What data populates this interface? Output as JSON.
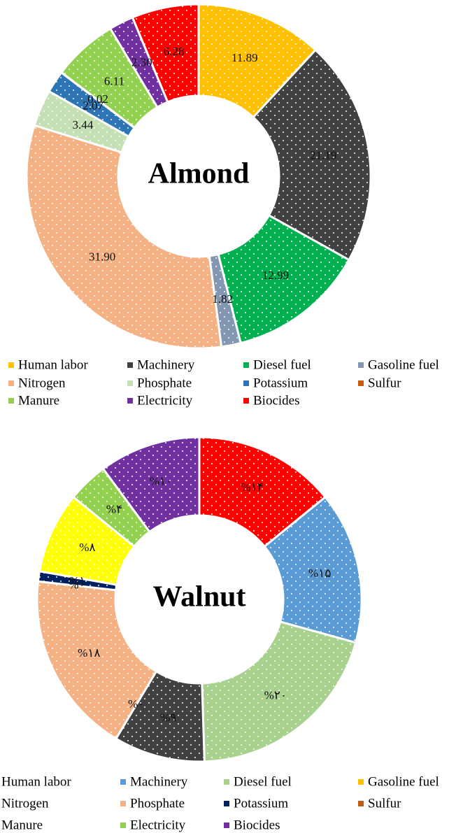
{
  "chart_data": [
    {
      "type": "donut",
      "title": "Almond",
      "categories": [
        "Human labor",
        "Machinery",
        "Diesel fuel",
        "Gasoline fuel",
        "Nitrogen",
        "Phosphate",
        "Potassium",
        "Sulfur",
        "Manure",
        "Electricity",
        "Biocides"
      ],
      "values": [
        11.89,
        21.19,
        12.99,
        1.82,
        31.9,
        3.44,
        2.07,
        0.02,
        6.11,
        2.3,
        6.28
      ],
      "value_labels": [
        "11.89",
        "21.19",
        "12.99",
        "1.82",
        "31.90",
        "3.44",
        "2.07",
        "0.02",
        "6.11",
        "2.30",
        "6.28"
      ],
      "colors": [
        "#FFC000",
        "#404040",
        "#00B050",
        "#8497B0",
        "#F4B183",
        "#C5E0B4",
        "#2E75B6",
        "#C55A11",
        "#92D050",
        "#7030A0",
        "#FF0000"
      ]
    },
    {
      "type": "donut",
      "title": "Walnut",
      "values": [
        14,
        15,
        20,
        9,
        0,
        18,
        0,
        1,
        8,
        4,
        10
      ],
      "value_labels": [
        "%۱۴",
        "%۱۵",
        "%۲۰",
        "%۹",
        "%۰",
        "%۱۸",
        "%۰",
        "%۱",
        "%۸",
        "%۴",
        "%۱۰"
      ],
      "colors": [
        "#FF0000",
        "#5B9BD5",
        "#A9D18E",
        "#404040",
        "#808080",
        "#F4B183",
        "#C55A11",
        "#002060",
        "#FFFF00",
        "#92D050",
        "#7030A0"
      ],
      "legend": [
        {
          "name": "Human labor",
          "color": "#FFFFFF"
        },
        {
          "name": "Machinery",
          "color": "#5B9BD5"
        },
        {
          "name": "Diesel fuel",
          "color": "#A9D18E"
        },
        {
          "name": "Gasoline fuel",
          "color": "#FFC000"
        },
        {
          "name": "Nitrogen",
          "color": "#FFFFFF"
        },
        {
          "name": "Phosphate",
          "color": "#F4B183"
        },
        {
          "name": "Potassium",
          "color": "#002060"
        },
        {
          "name": "Sulfur",
          "color": "#C55A11"
        },
        {
          "name": "Manure",
          "color": "#FFFFFF"
        },
        {
          "name": "Electricity",
          "color": "#92D050"
        },
        {
          "name": "Biocides",
          "color": "#7030A0"
        }
      ]
    }
  ]
}
